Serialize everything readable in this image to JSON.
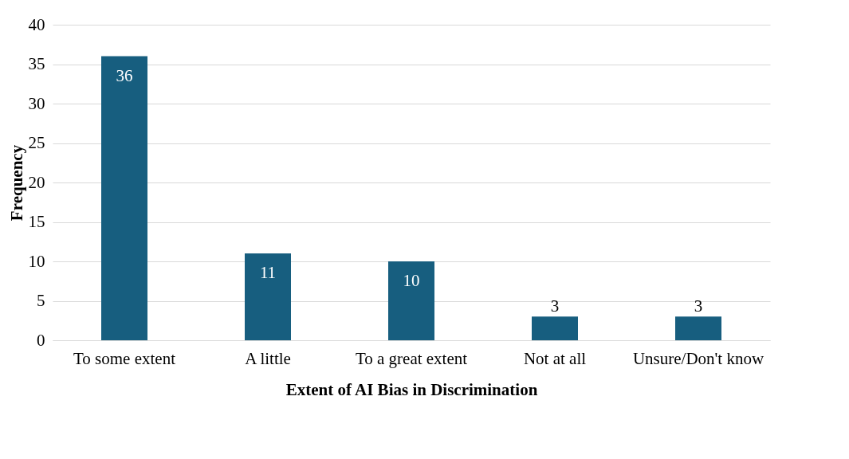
{
  "chart_data": {
    "type": "bar",
    "xlabel": "Extent of AI Bias in Discrimination",
    "ylabel": "Frequency",
    "categories": [
      "To some extent",
      "A little",
      "To a great extent",
      "Not at all",
      "Unsure/Don't know"
    ],
    "values": [
      36,
      11,
      10,
      3,
      3
    ],
    "color": "#175e7f",
    "ylim": [
      0,
      40
    ],
    "yticks": [
      0,
      5,
      10,
      15,
      20,
      25,
      30,
      35,
      40
    ],
    "grid": "y",
    "data_labels": true
  }
}
